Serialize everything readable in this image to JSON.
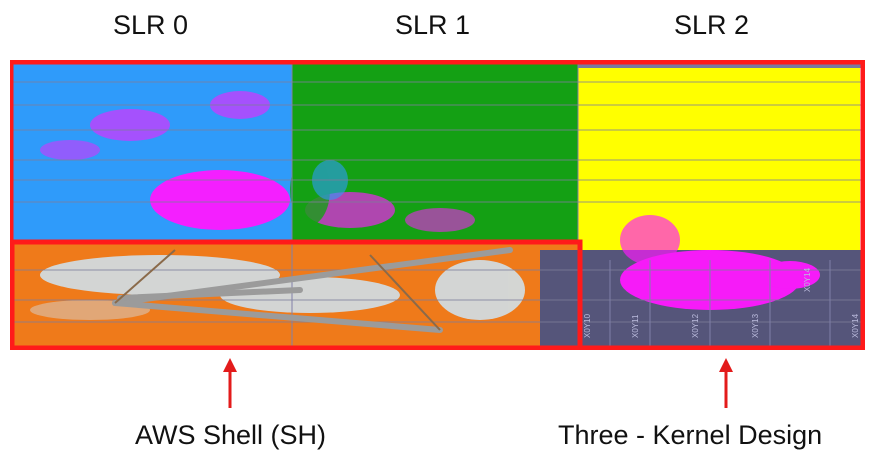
{
  "slr_labels": [
    "SLR 0",
    "SLR 1",
    "SLR 2"
  ],
  "captions": {
    "shell": "AWS Shell (SH)",
    "kernel": "Three - Kernel Design"
  },
  "floorplan": {
    "region_colors": {
      "slr0_kernel": "#2f9bfa",
      "slr1_kernel": "#14a014",
      "slr2_kernel": "#ffff00",
      "shell": "#ef7a1a",
      "static_region": "#55557a",
      "congestion": "#ff19ff",
      "routing_lines": "#9b9b9b",
      "highlight_box": "#ff1a1a",
      "arrow": "#e31b1b"
    },
    "clock_region_labels": [
      "X0Y10",
      "X0Y11",
      "X0Y12",
      "X0Y13",
      "X0Y14",
      "X0Y14"
    ]
  }
}
